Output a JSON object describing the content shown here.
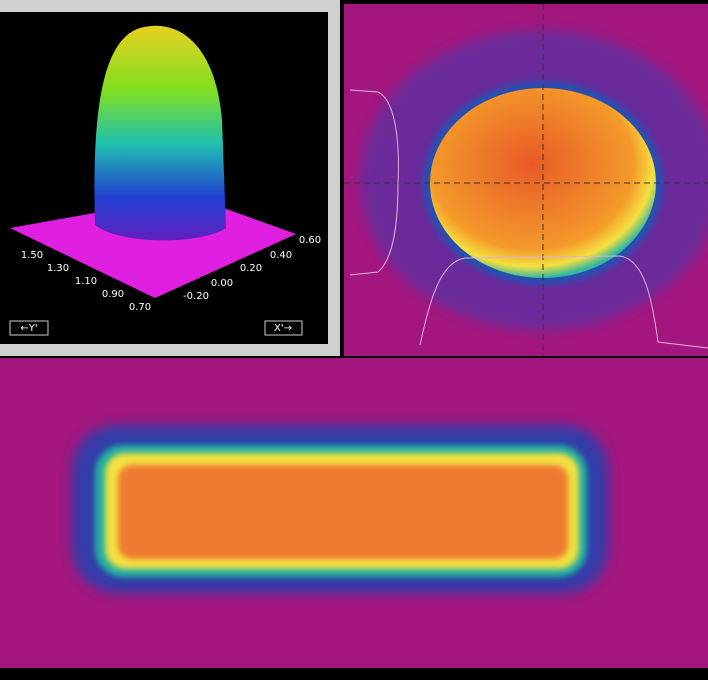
{
  "surface_plot": {
    "y_axis_labels": [
      "1.50",
      "1.30",
      "1.10",
      "0.90",
      "0.70"
    ],
    "x_axis_labels": [
      "-0.20",
      "0.00",
      "0.20",
      "0.40",
      "0.60"
    ],
    "buttons": [
      "←Y'",
      "X'→"
    ]
  }
}
